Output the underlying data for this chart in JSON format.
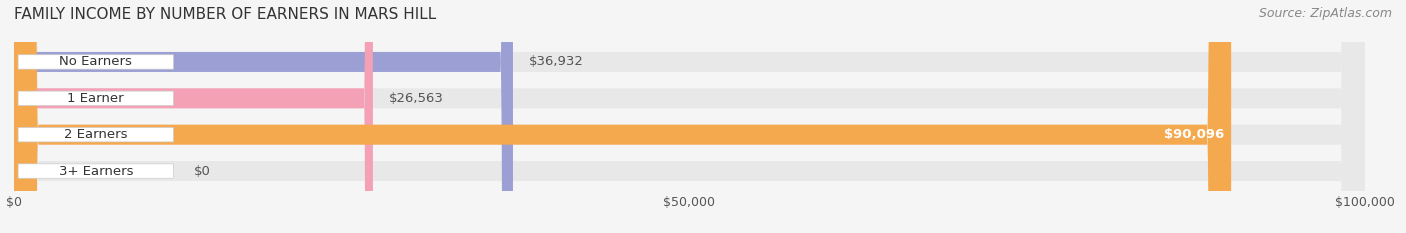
{
  "title": "FAMILY INCOME BY NUMBER OF EARNERS IN MARS HILL",
  "source": "Source: ZipAtlas.com",
  "categories": [
    "No Earners",
    "1 Earner",
    "2 Earners",
    "3+ Earners"
  ],
  "values": [
    36932,
    26563,
    90096,
    0
  ],
  "bar_colors": [
    "#9b9fd4",
    "#f4a0b5",
    "#f5a94e",
    "#f4a0b5"
  ],
  "bar_colors_light": [
    "#c8caeb",
    "#f9ccd9",
    "#f9cb8a",
    "#f9ccd9"
  ],
  "label_colors": [
    "#555555",
    "#555555",
    "#ffffff",
    "#555555"
  ],
  "value_labels": [
    "$36,932",
    "$26,563",
    "$90,096",
    "$0"
  ],
  "xlim": [
    0,
    100000
  ],
  "xticks": [
    0,
    50000,
    100000
  ],
  "xticklabels": [
    "$0",
    "$50,000",
    "$100,000"
  ],
  "background_color": "#f5f5f5",
  "bar_bg_color": "#e8e8e8",
  "title_fontsize": 11,
  "source_fontsize": 9,
  "label_fontsize": 9.5,
  "value_fontsize": 9.5,
  "bar_height": 0.55,
  "figsize": [
    14.06,
    2.33
  ],
  "dpi": 100
}
